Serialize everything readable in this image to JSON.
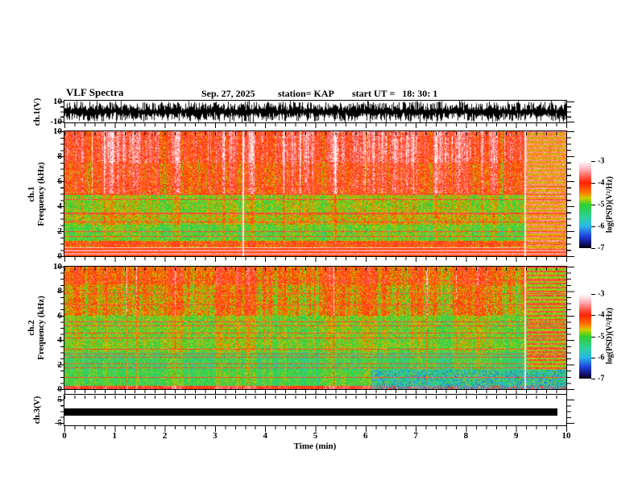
{
  "header": {
    "title": "VLF Spectra",
    "date": "Sep. 27, 2025",
    "station": "station= KAP",
    "start_ut": "start UT =   18: 30: 1"
  },
  "x_axis": {
    "label": "Time (min)",
    "tick_labels": [
      "0",
      "1",
      "2",
      "3",
      "4",
      "5",
      "6",
      "7",
      "8",
      "9",
      "10"
    ],
    "range_min": [
      0,
      10
    ],
    "minor_step_min": 0.2
  },
  "colorbar": {
    "label": "log(PSD)(V²/Hz)",
    "tick_labels": [
      "-3",
      "-4",
      "-5",
      "-6",
      "-7"
    ],
    "range": [
      -3,
      -7
    ]
  },
  "palette_stops": [
    [
      -3.0,
      "#ffffff"
    ],
    [
      -3.35,
      "#ffb8c0"
    ],
    [
      -3.75,
      "#ff5544"
    ],
    [
      -4.0,
      "#ff2200"
    ],
    [
      -4.45,
      "#ff7700"
    ],
    [
      -4.7,
      "#cfcf00"
    ],
    [
      -5.0,
      "#2fd02f"
    ],
    [
      -5.6,
      "#2fd0a0"
    ],
    [
      -6.0,
      "#29b6e8"
    ],
    [
      -6.45,
      "#2040dd"
    ],
    [
      -6.8,
      "#101070"
    ],
    [
      -7.0,
      "#000000"
    ]
  ],
  "panels": {
    "ch1_wave": {
      "ylabel": "ch.1(V)",
      "ytick_labels": [
        "10",
        "-10"
      ],
      "ylim": [
        -10,
        10
      ]
    },
    "ch1_spec": {
      "ylabel_ch": "ch.1",
      "ylabel_axis": "Frequency (kHz)",
      "ytick_labels": [
        "10",
        "8",
        "6",
        "4",
        "2",
        "0"
      ],
      "ylim": [
        0,
        10
      ]
    },
    "ch2_spec": {
      "ylabel_ch": "ch.2",
      "ylabel_axis": "Frequency (kHz)",
      "ytick_labels": [
        "10",
        "8",
        "6",
        "4",
        "2",
        "0"
      ],
      "ylim": [
        0,
        10
      ]
    },
    "ch3": {
      "ylabel": "ch.3(V)",
      "ytick_labels": [
        "5",
        "-5"
      ],
      "ylim": [
        -5,
        5
      ]
    }
  },
  "chart_data": [
    {
      "id": "ch1_wave",
      "type": "line",
      "ylabel": "ch.1(V)",
      "ylim": [
        -10,
        10
      ],
      "xlim_min": [
        0,
        10
      ],
      "description": "dense black broadband noise waveform spanning nearly the full ±10 V range",
      "seed": 11,
      "base_amp_v": 4,
      "spike_amp_v": 10,
      "spike_prob": 0.38
    },
    {
      "id": "ch1_spec",
      "type": "heatmap",
      "ylabel": "ch.1 Frequency (kHz)",
      "ylim": [
        0,
        10
      ],
      "xlim_min": [
        0,
        10
      ],
      "zlabel": "log(PSD)(V²/Hz)",
      "zlim": [
        -3,
        -7
      ],
      "seed": 21,
      "streak_split_khz": 5,
      "streak_hi": 1.0,
      "streak_lo": 0.45,
      "bands": [
        {
          "f": [
            7.5,
            10
          ],
          "psd": -3.85,
          "var": 0.5
        },
        {
          "f": [
            5.0,
            7.5
          ],
          "psd": -4.1,
          "var": 0.55
        },
        {
          "f": [
            3.5,
            5.0
          ],
          "psd": -4.85,
          "var": 0.4
        },
        {
          "f": [
            2.5,
            3.5
          ],
          "psd": -4.7,
          "var": 0.45
        },
        {
          "f": [
            1.2,
            2.5
          ],
          "psd": -5.0,
          "var": 0.4
        },
        {
          "f": [
            0.7,
            1.2
          ],
          "psd": -4.35,
          "var": 0.4
        },
        {
          "f": [
            0.0,
            0.7
          ],
          "psd": -3.9,
          "var": 0.3
        }
      ],
      "hlines_khz": [
        5.6,
        5.0,
        4.6,
        3.5,
        3.4,
        2.8,
        2.0,
        1.6,
        1.1,
        0.95
      ],
      "bottom_stripes_khz": 0.7,
      "right_band_min": 9.2,
      "right_psd": -3.55,
      "right_f_min_khz": 0.6,
      "white_lines_min": [
        3.55,
        9.17
      ]
    },
    {
      "id": "ch2_spec",
      "type": "heatmap",
      "ylabel": "ch.2 Frequency (kHz)",
      "ylim": [
        0,
        10
      ],
      "xlim_min": [
        0,
        10
      ],
      "zlabel": "log(PSD)(V²/Hz)",
      "zlim": [
        -3,
        -7
      ],
      "seed": 33,
      "streak_split_khz": 6,
      "streak_hi": 0.85,
      "streak_lo": 0.45,
      "bands": [
        {
          "f": [
            8.5,
            10
          ],
          "psd": -4.35,
          "var": 0.5
        },
        {
          "f": [
            6.0,
            8.5
          ],
          "psd": -4.6,
          "var": 0.5
        },
        {
          "f": [
            3.0,
            6.0
          ],
          "psd": -4.95,
          "var": 0.4
        },
        {
          "f": [
            1.5,
            3.0
          ],
          "psd": -5.25,
          "var": 0.45
        },
        {
          "f": [
            0.25,
            1.5
          ],
          "psd": -5.15,
          "var": 0.4
        },
        {
          "f": [
            0.0,
            0.25
          ],
          "psd": -3.9,
          "var": 0.3
        }
      ],
      "hlines_khz": [
        8.9,
        7.8,
        6.9,
        5.5,
        5.2,
        4.6,
        4.2,
        3.3,
        2.9,
        2.6,
        2.1,
        1.8,
        1.0
      ],
      "blue_patch": {
        "t_min": 6.1,
        "f_max_khz": 1.6,
        "psd": -5.9
      },
      "right_band_min": 9.2,
      "right_psd": -3.8,
      "right_f_min_khz": 1.6,
      "white_lines_min": [
        9.17
      ]
    },
    {
      "id": "ch3",
      "type": "line",
      "ylabel": "ch.3(V)",
      "ylim": [
        -5,
        5
      ],
      "xlim_min": [
        0,
        10
      ],
      "description": "constant thick black trace (saturated band) near 0 V",
      "bar": {
        "t_range_min": [
          0,
          9.83
        ],
        "center_v": -0.3,
        "half_height_v": 1.6,
        "color": "#000000"
      }
    }
  ]
}
